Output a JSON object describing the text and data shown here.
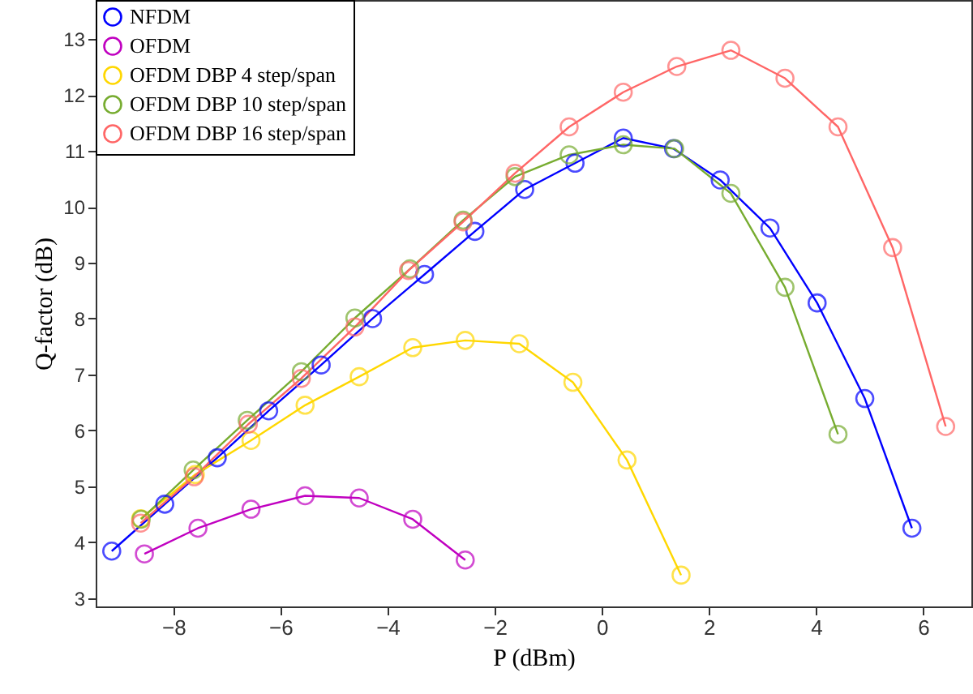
{
  "chart_data": {
    "type": "line",
    "xlabel": "P (dBm)",
    "ylabel": "Q-factor (dB)",
    "xlim": [
      -9.45,
      6.9
    ],
    "ylim": [
      2.85,
      13.7
    ],
    "xticks": [
      -8,
      -6,
      -4,
      -2,
      0,
      2,
      4,
      6
    ],
    "yticks": [
      3,
      4,
      5,
      6,
      7,
      8,
      9,
      10,
      11,
      12,
      13
    ],
    "grid": false,
    "legend": "top left",
    "marker": "circle",
    "line_style": "solid",
    "series": [
      {
        "name": "NFDM",
        "color": "#0000ff",
        "x": [
          -9.15,
          -8.16,
          -7.18,
          -6.22,
          -5.24,
          -4.28,
          -3.31,
          -2.37,
          -1.44,
          -0.5,
          0.4,
          1.34,
          2.21,
          3.14,
          4.02,
          4.91,
          5.79
        ],
        "values": [
          3.84,
          4.68,
          5.51,
          6.35,
          7.17,
          8.0,
          8.79,
          9.56,
          10.31,
          10.78,
          11.23,
          11.04,
          10.48,
          9.62,
          8.28,
          6.57,
          4.25
        ]
      },
      {
        "name": "OFDM",
        "color": "#c000c0",
        "x": [
          -8.54,
          -7.54,
          -6.55,
          -5.54,
          -4.53,
          -3.53,
          -2.55
        ],
        "values": [
          3.79,
          4.25,
          4.59,
          4.83,
          4.79,
          4.41,
          3.68
        ]
      },
      {
        "name": "OFDM DBP 4 step/span",
        "color": "#ffd700",
        "x": [
          -8.61,
          -7.59,
          -6.55,
          -5.54,
          -4.53,
          -3.53,
          -2.55,
          -1.54,
          -0.54,
          0.47,
          1.48
        ],
        "values": [
          4.42,
          5.21,
          5.82,
          6.45,
          6.96,
          7.48,
          7.61,
          7.55,
          6.86,
          5.47,
          3.41
        ]
      },
      {
        "name": "OFDM DBP 10 step/span",
        "color": "#77ac30",
        "x": [
          -8.6,
          -7.63,
          -6.62,
          -5.61,
          -4.61,
          -3.58,
          -2.59,
          -1.62,
          -0.61,
          0.4,
          1.36,
          2.41,
          3.42,
          4.41
        ],
        "values": [
          4.41,
          5.29,
          6.18,
          7.05,
          8.01,
          8.89,
          9.76,
          10.54,
          10.93,
          11.11,
          11.04,
          10.24,
          8.56,
          5.93
        ]
      },
      {
        "name": "OFDM DBP 16 step/span",
        "color": "#ff6666",
        "x": [
          -8.61,
          -7.61,
          -6.6,
          -5.61,
          -4.61,
          -3.61,
          -2.59,
          -1.62,
          -0.61,
          0.4,
          1.4,
          2.41,
          3.42,
          4.41,
          5.43,
          6.42
        ],
        "values": [
          4.34,
          5.17,
          6.11,
          6.93,
          7.85,
          8.86,
          9.73,
          10.6,
          11.43,
          12.05,
          12.51,
          12.8,
          12.3,
          11.43,
          9.27,
          6.07
        ]
      }
    ]
  }
}
